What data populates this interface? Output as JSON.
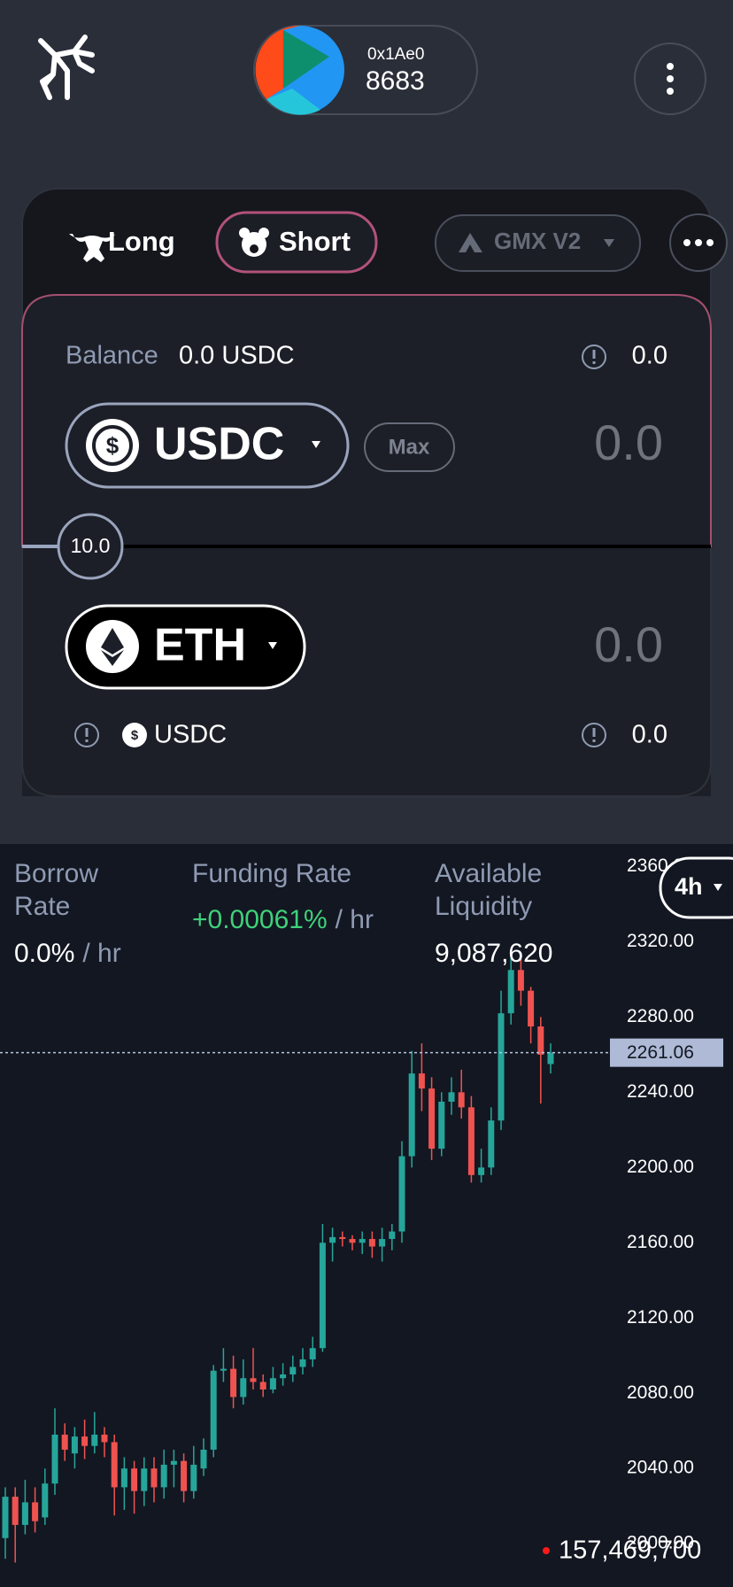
{
  "header": {
    "address": "0x1Ae0",
    "id": "8683"
  },
  "trade": {
    "long": "Long",
    "short": "Short",
    "exchange": "GMX V2",
    "balance_label": "Balance",
    "balance": "0.0 USDC",
    "balance_right": "0.0",
    "pay_token": "USDC",
    "max": "Max",
    "pay_amount": "0.0",
    "leverage": "10.0",
    "receive_token": "ETH",
    "receive_amount": "0.0",
    "collateral": "USDC",
    "collateral_amount": "0.0"
  },
  "stats": [
    {
      "label": "Borrow Rate",
      "value": "0.0%",
      "unit": "/ hr"
    },
    {
      "label": "Funding Rate",
      "value": "+0.00061%",
      "unit": "/ hr"
    },
    {
      "label": "Available Liquidity",
      "value": "9,087,620"
    }
  ],
  "chart_data": {
    "type": "candlestick",
    "interval": "4h",
    "up_color": "#26a69a",
    "down_color": "#ef5350",
    "open": [
      2003,
      2025,
      2010,
      2022,
      2014,
      2032,
      2058,
      2048,
      2057,
      2052,
      2058,
      2054,
      2030,
      2040,
      2028,
      2040,
      2030,
      2042,
      2044,
      2028,
      2040,
      2050,
      2092,
      2093,
      2078,
      2088,
      2086,
      2082,
      2088,
      2090,
      2094,
      2098,
      2104,
      2160,
      2163,
      2162,
      2160,
      2162,
      2158,
      2162,
      2166,
      2206,
      2250,
      2242,
      2210,
      2235,
      2240,
      2232,
      2196,
      2200,
      2225,
      2282,
      2305,
      2294,
      2275,
      2255
    ],
    "high": [
      2030,
      2030,
      2034,
      2030,
      2040,
      2072,
      2064,
      2062,
      2066,
      2070,
      2062,
      2058,
      2046,
      2044,
      2046,
      2046,
      2050,
      2050,
      2048,
      2052,
      2056,
      2095,
      2104,
      2100,
      2098,
      2104,
      2090,
      2094,
      2096,
      2100,
      2104,
      2110,
      2170,
      2168,
      2166,
      2164,
      2166,
      2166,
      2168,
      2170,
      2214,
      2262,
      2266,
      2248,
      2240,
      2248,
      2252,
      2238,
      2210,
      2232,
      2294,
      2312,
      2312,
      2296,
      2280,
      2266
    ],
    "low": [
      1992,
      1990,
      2005,
      2006,
      2010,
      2026,
      2044,
      2040,
      2045,
      2048,
      2046,
      2015,
      2018,
      2016,
      2020,
      2022,
      2024,
      2030,
      2022,
      2024,
      2036,
      2046,
      2086,
      2072,
      2074,
      2082,
      2078,
      2080,
      2084,
      2086,
      2090,
      2094,
      2102,
      2150,
      2158,
      2156,
      2154,
      2152,
      2150,
      2156,
      2160,
      2200,
      2230,
      2204,
      2206,
      2228,
      2226,
      2192,
      2192,
      2196,
      2220,
      2276,
      2286,
      2266,
      2234,
      2250
    ],
    "close": [
      2025,
      2010,
      2022,
      2012,
      2032,
      2058,
      2050,
      2057,
      2052,
      2058,
      2054,
      2030,
      2040,
      2028,
      2040,
      2030,
      2042,
      2044,
      2028,
      2042,
      2050,
      2092,
      2093,
      2078,
      2088,
      2086,
      2082,
      2088,
      2090,
      2094,
      2098,
      2104,
      2160,
      2163,
      2162,
      2160,
      2162,
      2158,
      2162,
      2166,
      2206,
      2250,
      2242,
      2210,
      2235,
      2240,
      2232,
      2196,
      2200,
      2225,
      2282,
      2305,
      2294,
      2275,
      2260,
      2261.06
    ],
    "ylim": [
      1977,
      2372
    ],
    "yticks": [
      {
        "value": 2000,
        "label": "2000.00"
      },
      {
        "value": 2040,
        "label": "2040.00"
      },
      {
        "value": 2080,
        "label": "2080.00"
      },
      {
        "value": 2120,
        "label": "2120.00"
      },
      {
        "value": 2160,
        "label": "2160.00"
      },
      {
        "value": 2200,
        "label": "2200.00"
      },
      {
        "value": 2240,
        "label": "2240.00"
      },
      {
        "value": 2280,
        "label": "2280.00"
      },
      {
        "value": 2320,
        "label": "2320.00"
      },
      {
        "value": 2360,
        "label": "2360.00"
      }
    ],
    "last_price": 2261.06,
    "volume_label": "157,469,700"
  }
}
